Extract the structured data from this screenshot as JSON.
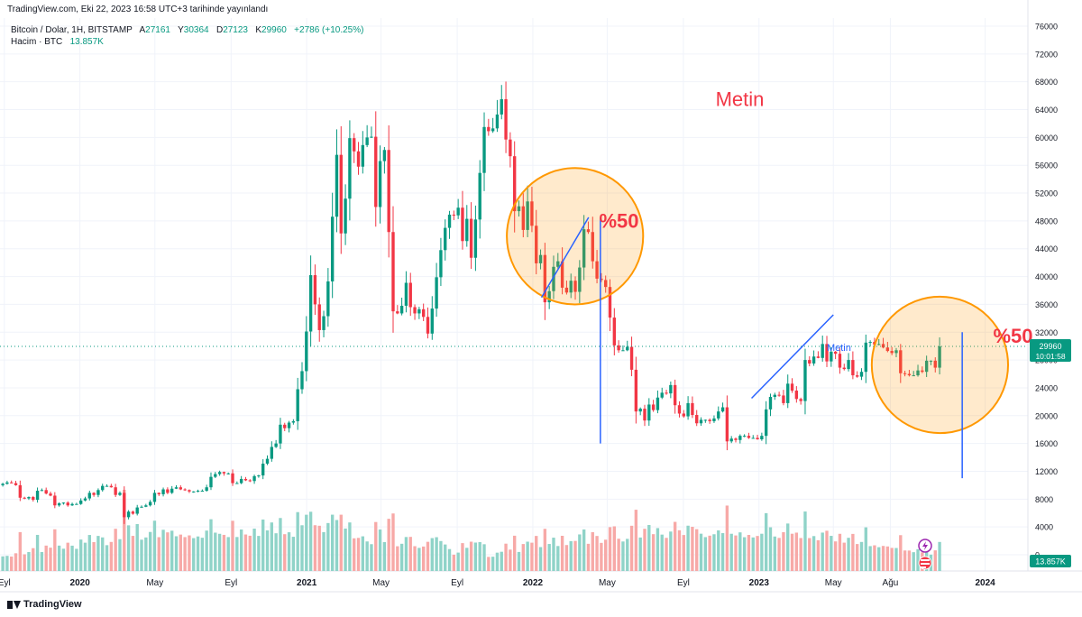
{
  "published_line": "TradingView.com, Eki 22, 2023 16:58 UTC+3 tarihinde yayınlandı",
  "legend": {
    "symbol": "Bitcoin / Dolar, 1H, BITSTAMP",
    "open_label": "A",
    "open": "27161",
    "high_label": "Y",
    "high": "30364",
    "low_label": "D",
    "low": "27123",
    "close_label": "K",
    "close": "29960",
    "change": "+2786 (+10.25%)",
    "volume_label": "Hacim · BTC",
    "volume": "13.857K"
  },
  "price_tag": {
    "price": "29960",
    "countdown": "10:01:58"
  },
  "volume_tag": "13.857K",
  "footer_brand": "TradingView",
  "colors": {
    "up": "#089981",
    "down": "#f23645",
    "vol_up": "#8fd3c8",
    "vol_down": "#f7a9a7",
    "drawing": "#2962ff",
    "circle": "#ff9800",
    "text_annotation": "#f23645"
  },
  "chart_data": {
    "type": "candlestick",
    "symbol": "Bitcoin / Dolar",
    "exchange": "BITSTAMP",
    "ylim": [
      0,
      76000
    ],
    "y_ticks": [
      0,
      4000,
      8000,
      12000,
      16000,
      20000,
      24000,
      28000,
      32000,
      36000,
      40000,
      44000,
      48000,
      52000,
      56000,
      60000,
      64000,
      68000,
      72000,
      76000
    ],
    "x_labels": [
      {
        "label": "Eyl",
        "date": "2019-09"
      },
      {
        "label": "2020",
        "date": "2020-01"
      },
      {
        "label": "May",
        "date": "2020-05"
      },
      {
        "label": "Eyl",
        "date": "2020-09"
      },
      {
        "label": "2021",
        "date": "2021-01"
      },
      {
        "label": "May",
        "date": "2021-05"
      },
      {
        "label": "Eyl",
        "date": "2021-09"
      },
      {
        "label": "2022",
        "date": "2022-01"
      },
      {
        "label": "May",
        "date": "2022-05"
      },
      {
        "label": "Eyl",
        "date": "2022-09"
      },
      {
        "label": "2023",
        "date": "2023-01"
      },
      {
        "label": "May",
        "date": "2023-05"
      },
      {
        "label": "Ağu",
        "date": "2023-08"
      },
      {
        "label": "2024",
        "date": "2024-01"
      }
    ],
    "x_range": [
      "2019-08-25",
      "2024-03-10"
    ],
    "last_price": 29960,
    "weekly_closes": [
      {
        "date": "2019-08-26",
        "close": 10200
      },
      {
        "date": "2019-09-02",
        "close": 10400
      },
      {
        "date": "2019-09-09",
        "close": 10300
      },
      {
        "date": "2019-09-16",
        "close": 10000
      },
      {
        "date": "2019-09-23",
        "close": 8200
      },
      {
        "date": "2019-09-30",
        "close": 8100
      },
      {
        "date": "2019-10-07",
        "close": 8300
      },
      {
        "date": "2019-10-14",
        "close": 7900
      },
      {
        "date": "2019-10-21",
        "close": 9200
      },
      {
        "date": "2019-10-28",
        "close": 9300
      },
      {
        "date": "2019-11-04",
        "close": 8800
      },
      {
        "date": "2019-11-11",
        "close": 8500
      },
      {
        "date": "2019-11-18",
        "close": 7100
      },
      {
        "date": "2019-11-25",
        "close": 7400
      },
      {
        "date": "2019-12-02",
        "close": 7500
      },
      {
        "date": "2019-12-09",
        "close": 7100
      },
      {
        "date": "2019-12-16",
        "close": 7300
      },
      {
        "date": "2019-12-23",
        "close": 7300
      },
      {
        "date": "2019-12-30",
        "close": 7800
      },
      {
        "date": "2020-01-06",
        "close": 8100
      },
      {
        "date": "2020-01-13",
        "close": 8900
      },
      {
        "date": "2020-01-20",
        "close": 8600
      },
      {
        "date": "2020-01-27",
        "close": 9300
      },
      {
        "date": "2020-02-03",
        "close": 9900
      },
      {
        "date": "2020-02-10",
        "close": 9900
      },
      {
        "date": "2020-02-17",
        "close": 9700
      },
      {
        "date": "2020-02-24",
        "close": 8600
      },
      {
        "date": "2020-03-02",
        "close": 8900
      },
      {
        "date": "2020-03-09",
        "close": 5400
      },
      {
        "date": "2020-03-16",
        "close": 6200
      },
      {
        "date": "2020-03-23",
        "close": 5900
      },
      {
        "date": "2020-03-30",
        "close": 6800
      },
      {
        "date": "2020-04-06",
        "close": 6900
      },
      {
        "date": "2020-04-13",
        "close": 7100
      },
      {
        "date": "2020-04-20",
        "close": 7600
      },
      {
        "date": "2020-04-27",
        "close": 8900
      },
      {
        "date": "2020-05-04",
        "close": 8700
      },
      {
        "date": "2020-05-11",
        "close": 9400
      },
      {
        "date": "2020-05-18",
        "close": 8900
      },
      {
        "date": "2020-05-25",
        "close": 9500
      },
      {
        "date": "2020-06-01",
        "close": 9700
      },
      {
        "date": "2020-06-08",
        "close": 9400
      },
      {
        "date": "2020-06-15",
        "close": 9300
      },
      {
        "date": "2020-06-22",
        "close": 9100
      },
      {
        "date": "2020-06-29",
        "close": 9100
      },
      {
        "date": "2020-07-06",
        "close": 9200
      },
      {
        "date": "2020-07-13",
        "close": 9200
      },
      {
        "date": "2020-07-20",
        "close": 9700
      },
      {
        "date": "2020-07-27",
        "close": 11200
      },
      {
        "date": "2020-08-03",
        "close": 11600
      },
      {
        "date": "2020-08-10",
        "close": 11900
      },
      {
        "date": "2020-08-17",
        "close": 11700
      },
      {
        "date": "2020-08-24",
        "close": 11700
      },
      {
        "date": "2020-08-31",
        "close": 10300
      },
      {
        "date": "2020-09-07",
        "close": 10300
      },
      {
        "date": "2020-09-14",
        "close": 10900
      },
      {
        "date": "2020-09-21",
        "close": 10700
      },
      {
        "date": "2020-09-28",
        "close": 10600
      },
      {
        "date": "2020-10-05",
        "close": 11300
      },
      {
        "date": "2020-10-12",
        "close": 11400
      },
      {
        "date": "2020-10-19",
        "close": 13100
      },
      {
        "date": "2020-10-26",
        "close": 13800
      },
      {
        "date": "2020-11-02",
        "close": 15500
      },
      {
        "date": "2020-11-09",
        "close": 16000
      },
      {
        "date": "2020-11-16",
        "close": 18700
      },
      {
        "date": "2020-11-23",
        "close": 18200
      },
      {
        "date": "2020-11-30",
        "close": 19000
      },
      {
        "date": "2020-12-07",
        "close": 19200
      },
      {
        "date": "2020-12-14",
        "close": 23800
      },
      {
        "date": "2020-12-21",
        "close": 26400
      },
      {
        "date": "2020-12-28",
        "close": 32100
      },
      {
        "date": "2021-01-04",
        "close": 40200
      },
      {
        "date": "2021-01-11",
        "close": 36000
      },
      {
        "date": "2021-01-18",
        "close": 32300
      },
      {
        "date": "2021-01-25",
        "close": 34300
      },
      {
        "date": "2021-02-01",
        "close": 39300
      },
      {
        "date": "2021-02-08",
        "close": 48600
      },
      {
        "date": "2021-02-15",
        "close": 57500
      },
      {
        "date": "2021-02-22",
        "close": 46200
      },
      {
        "date": "2021-03-01",
        "close": 51200
      },
      {
        "date": "2021-03-08",
        "close": 59900
      },
      {
        "date": "2021-03-15",
        "close": 58000
      },
      {
        "date": "2021-03-22",
        "close": 55800
      },
      {
        "date": "2021-03-29",
        "close": 58900
      },
      {
        "date": "2021-04-05",
        "close": 60000
      },
      {
        "date": "2021-04-12",
        "close": 60100
      },
      {
        "date": "2021-04-19",
        "close": 50000
      },
      {
        "date": "2021-04-26",
        "close": 56600
      },
      {
        "date": "2021-05-03",
        "close": 58200
      },
      {
        "date": "2021-05-10",
        "close": 46400
      },
      {
        "date": "2021-05-17",
        "close": 35000
      },
      {
        "date": "2021-05-24",
        "close": 34700
      },
      {
        "date": "2021-05-31",
        "close": 35800
      },
      {
        "date": "2021-06-07",
        "close": 39100
      },
      {
        "date": "2021-06-14",
        "close": 35600
      },
      {
        "date": "2021-06-21",
        "close": 34700
      },
      {
        "date": "2021-06-28",
        "close": 35300
      },
      {
        "date": "2021-07-05",
        "close": 34200
      },
      {
        "date": "2021-07-12",
        "close": 31800
      },
      {
        "date": "2021-07-19",
        "close": 35400
      },
      {
        "date": "2021-07-26",
        "close": 39900
      },
      {
        "date": "2021-08-02",
        "close": 43800
      },
      {
        "date": "2021-08-09",
        "close": 47000
      },
      {
        "date": "2021-08-16",
        "close": 48900
      },
      {
        "date": "2021-08-23",
        "close": 48800
      },
      {
        "date": "2021-08-30",
        "close": 49900
      },
      {
        "date": "2021-09-06",
        "close": 45100
      },
      {
        "date": "2021-09-13",
        "close": 48300
      },
      {
        "date": "2021-09-20",
        "close": 42700
      },
      {
        "date": "2021-09-27",
        "close": 48200
      },
      {
        "date": "2021-10-04",
        "close": 54900
      },
      {
        "date": "2021-10-11",
        "close": 61500
      },
      {
        "date": "2021-10-18",
        "close": 60900
      },
      {
        "date": "2021-10-25",
        "close": 61300
      },
      {
        "date": "2021-11-01",
        "close": 63300
      },
      {
        "date": "2021-11-08",
        "close": 65500
      },
      {
        "date": "2021-11-15",
        "close": 59700
      },
      {
        "date": "2021-11-22",
        "close": 57300
      },
      {
        "date": "2021-11-29",
        "close": 49400
      },
      {
        "date": "2021-12-06",
        "close": 50100
      },
      {
        "date": "2021-12-13",
        "close": 46700
      },
      {
        "date": "2021-12-20",
        "close": 50800
      },
      {
        "date": "2021-12-27",
        "close": 47300
      },
      {
        "date": "2022-01-03",
        "close": 41900
      },
      {
        "date": "2022-01-10",
        "close": 43100
      },
      {
        "date": "2022-01-17",
        "close": 36300
      },
      {
        "date": "2022-01-24",
        "close": 37900
      },
      {
        "date": "2022-01-31",
        "close": 41400
      },
      {
        "date": "2022-02-07",
        "close": 42200
      },
      {
        "date": "2022-02-14",
        "close": 38400
      },
      {
        "date": "2022-02-21",
        "close": 37700
      },
      {
        "date": "2022-02-28",
        "close": 39400
      },
      {
        "date": "2022-03-07",
        "close": 37800
      },
      {
        "date": "2022-03-14",
        "close": 41300
      },
      {
        "date": "2022-03-21",
        "close": 46800
      },
      {
        "date": "2022-03-28",
        "close": 46400
      },
      {
        "date": "2022-04-04",
        "close": 42200
      },
      {
        "date": "2022-04-11",
        "close": 39700
      },
      {
        "date": "2022-04-18",
        "close": 39500
      },
      {
        "date": "2022-04-25",
        "close": 38500
      },
      {
        "date": "2022-05-02",
        "close": 34100
      },
      {
        "date": "2022-05-09",
        "close": 30100
      },
      {
        "date": "2022-05-16",
        "close": 29400
      },
      {
        "date": "2022-05-23",
        "close": 29400
      },
      {
        "date": "2022-05-30",
        "close": 29900
      },
      {
        "date": "2022-06-06",
        "close": 26600
      },
      {
        "date": "2022-06-13",
        "close": 20600
      },
      {
        "date": "2022-06-20",
        "close": 21000
      },
      {
        "date": "2022-06-27",
        "close": 19300
      },
      {
        "date": "2022-07-04",
        "close": 21600
      },
      {
        "date": "2022-07-11",
        "close": 20800
      },
      {
        "date": "2022-07-18",
        "close": 22600
      },
      {
        "date": "2022-07-25",
        "close": 23300
      },
      {
        "date": "2022-08-01",
        "close": 23200
      },
      {
        "date": "2022-08-08",
        "close": 24400
      },
      {
        "date": "2022-08-15",
        "close": 21500
      },
      {
        "date": "2022-08-22",
        "close": 20300
      },
      {
        "date": "2022-08-29",
        "close": 19900
      },
      {
        "date": "2022-09-05",
        "close": 21800
      },
      {
        "date": "2022-09-12",
        "close": 20100
      },
      {
        "date": "2022-09-19",
        "close": 18900
      },
      {
        "date": "2022-09-26",
        "close": 19400
      },
      {
        "date": "2022-10-03",
        "close": 19400
      },
      {
        "date": "2022-10-10",
        "close": 19200
      },
      {
        "date": "2022-10-17",
        "close": 19600
      },
      {
        "date": "2022-10-24",
        "close": 20600
      },
      {
        "date": "2022-10-31",
        "close": 21200
      },
      {
        "date": "2022-11-07",
        "close": 16300
      },
      {
        "date": "2022-11-14",
        "close": 16700
      },
      {
        "date": "2022-11-21",
        "close": 16500
      },
      {
        "date": "2022-11-28",
        "close": 17100
      },
      {
        "date": "2022-12-05",
        "close": 17100
      },
      {
        "date": "2022-12-12",
        "close": 16800
      },
      {
        "date": "2022-12-19",
        "close": 16800
      },
      {
        "date": "2022-12-26",
        "close": 16600
      },
      {
        "date": "2023-01-02",
        "close": 17100
      },
      {
        "date": "2023-01-09",
        "close": 20900
      },
      {
        "date": "2023-01-16",
        "close": 22700
      },
      {
        "date": "2023-01-23",
        "close": 23000
      },
      {
        "date": "2023-01-30",
        "close": 22900
      },
      {
        "date": "2023-02-06",
        "close": 21800
      },
      {
        "date": "2023-02-13",
        "close": 24600
      },
      {
        "date": "2023-02-20",
        "close": 23600
      },
      {
        "date": "2023-02-27",
        "close": 22400
      },
      {
        "date": "2023-03-06",
        "close": 22100
      },
      {
        "date": "2023-03-13",
        "close": 28000
      },
      {
        "date": "2023-03-20",
        "close": 27500
      },
      {
        "date": "2023-03-27",
        "close": 28500
      },
      {
        "date": "2023-04-03",
        "close": 28300
      },
      {
        "date": "2023-04-10",
        "close": 30300
      },
      {
        "date": "2023-04-17",
        "close": 27800
      },
      {
        "date": "2023-04-24",
        "close": 29200
      },
      {
        "date": "2023-05-01",
        "close": 28900
      },
      {
        "date": "2023-05-08",
        "close": 26900
      },
      {
        "date": "2023-05-15",
        "close": 26700
      },
      {
        "date": "2023-05-22",
        "close": 28000
      },
      {
        "date": "2023-05-29",
        "close": 25800
      },
      {
        "date": "2023-06-05",
        "close": 25600
      },
      {
        "date": "2023-06-12",
        "close": 26300
      },
      {
        "date": "2023-06-19",
        "close": 30500
      },
      {
        "date": "2023-06-26",
        "close": 30600
      },
      {
        "date": "2023-07-03",
        "close": 30200
      },
      {
        "date": "2023-07-10",
        "close": 30300
      },
      {
        "date": "2023-07-17",
        "close": 29800
      },
      {
        "date": "2023-07-24",
        "close": 29300
      },
      {
        "date": "2023-07-31",
        "close": 29000
      },
      {
        "date": "2023-08-07",
        "close": 29400
      },
      {
        "date": "2023-08-14",
        "close": 26100
      },
      {
        "date": "2023-08-21",
        "close": 26000
      },
      {
        "date": "2023-08-28",
        "close": 25800
      },
      {
        "date": "2023-09-04",
        "close": 25800
      },
      {
        "date": "2023-09-11",
        "close": 26500
      },
      {
        "date": "2023-09-18",
        "close": 26300
      },
      {
        "date": "2023-09-25",
        "close": 27900
      },
      {
        "date": "2023-10-02",
        "close": 27900
      },
      {
        "date": "2023-10-09",
        "close": 26900
      },
      {
        "date": "2023-10-16",
        "close": 29960
      }
    ],
    "annotations": [
      {
        "type": "text",
        "text": "Metin",
        "date": "2022-12-01",
        "price": 64500
      },
      {
        "type": "text",
        "text": "%50",
        "date": "2022-05-20",
        "price": 47000
      },
      {
        "type": "text",
        "text": "%50",
        "date": "2024-02-15",
        "price": 30500
      },
      {
        "type": "text",
        "text": "Metin",
        "date": "2023-05-10",
        "price": 29300
      },
      {
        "type": "circle",
        "center_date": "2022-03-10",
        "center_price": 45800,
        "radius_days": 110,
        "label": ""
      },
      {
        "type": "circle",
        "center_date": "2023-10-20",
        "center_price": 27300,
        "radius_days": 110,
        "label": ""
      },
      {
        "type": "trendline",
        "from": {
          "date": "2022-01-15",
          "price": 37000
        },
        "to": {
          "date": "2022-04-01",
          "price": 48500
        }
      },
      {
        "type": "trendline",
        "from": {
          "date": "2022-12-20",
          "price": 22500
        },
        "to": {
          "date": "2023-05-01",
          "price": 34500
        }
      },
      {
        "type": "vline",
        "date": "2022-04-20",
        "from_price": 16000,
        "to_price": 48500
      },
      {
        "type": "vline",
        "date": "2023-11-25",
        "from_price": 11000,
        "to_price": 32000
      }
    ]
  }
}
